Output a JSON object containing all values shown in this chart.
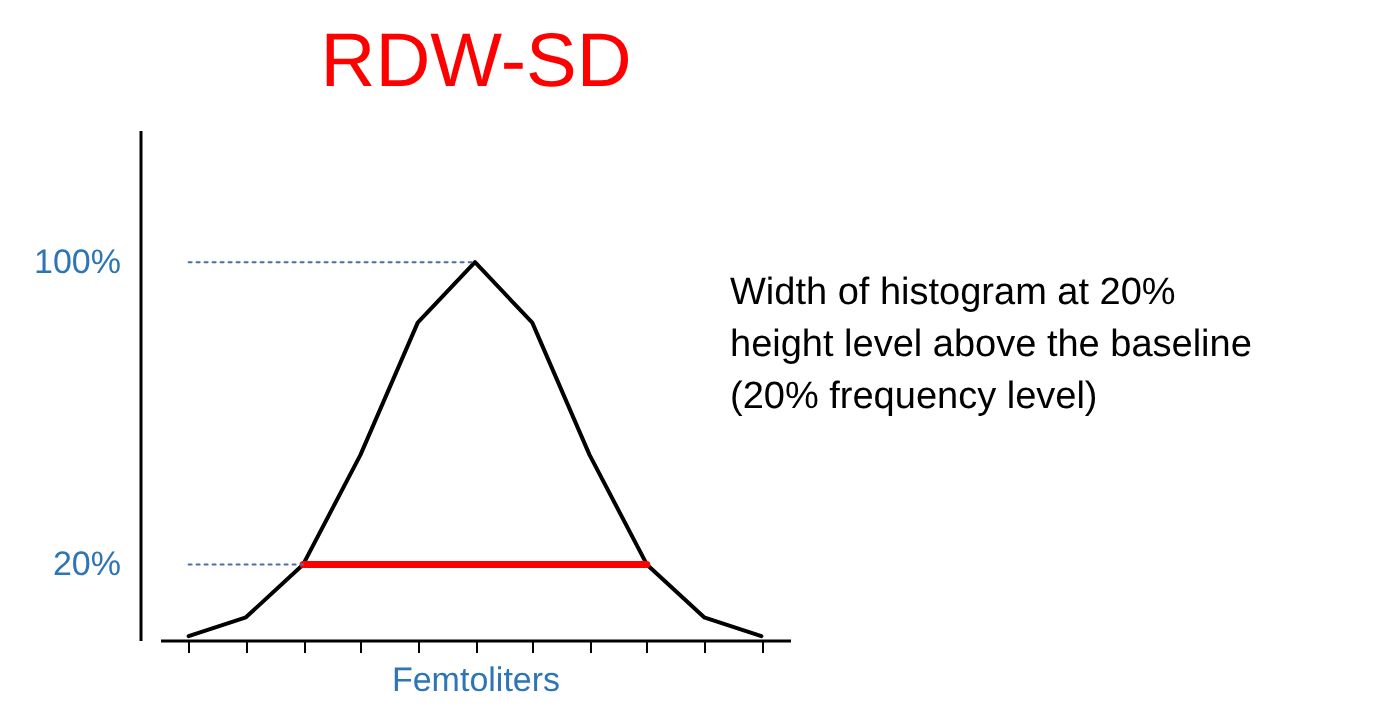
{
  "chart_data": {
    "type": "line",
    "title": "RDW-SD",
    "xlabel": "Femtoliters",
    "annotations": [
      "Width of histogram at 20%\nheight level above the baseline\n(20% frequency level)"
    ],
    "categories": [
      null,
      null,
      null,
      null,
      null,
      null,
      null,
      null,
      null,
      null,
      null
    ],
    "ylim": [
      0,
      135
    ],
    "yticks": [
      {
        "value": 20,
        "label": "20%"
      },
      {
        "value": 100,
        "label": "100%"
      }
    ],
    "grid": false,
    "marker": "none",
    "series": [
      {
        "color": "#000000",
        "line_style": "solid",
        "values": [
          1,
          6,
          20,
          49,
          84,
          100,
          84,
          49,
          20,
          6,
          1
        ]
      },
      {
        "color": "#ff0000",
        "line_style": "solid",
        "values": [
          null,
          null,
          20,
          20,
          20,
          20,
          20,
          20,
          20,
          null,
          null
        ]
      },
      {
        "color": "#4a6fa5",
        "line_style": "dotted",
        "values": [
          100,
          100,
          100,
          100,
          100,
          100,
          null,
          null,
          null,
          null,
          null
        ]
      },
      {
        "color": "#4a6fa5",
        "line_style": "dotted",
        "values": [
          20,
          20,
          20,
          null,
          null,
          null,
          null,
          null,
          null,
          null,
          null
        ]
      }
    ]
  }
}
